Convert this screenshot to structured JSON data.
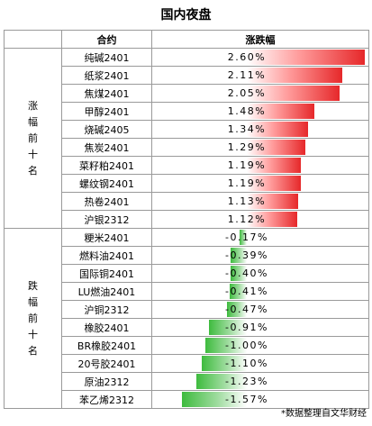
{
  "title": "国内夜盘",
  "footnote": "*数据整理自文华财经",
  "headers": {
    "contract": "合约",
    "change": "涨跌幅"
  },
  "groups": {
    "top": "涨幅前十名",
    "bottom": "跌幅前十名"
  },
  "colors": {
    "positive": "#e6282a",
    "negative": "#3ebb3e",
    "border": "#9a9a9a"
  },
  "chart_data": {
    "type": "bar",
    "title": "国内夜盘",
    "value_label": "涨跌幅",
    "unit": "%",
    "xlim": [
      -2.0,
      2.6
    ],
    "groups": [
      {
        "name": "涨幅前十名",
        "categories": [
          "纯碱2401",
          "纸浆2401",
          "焦煤2401",
          "甲醇2401",
          "烧碱2405",
          "焦炭2401",
          "菜籽粕2401",
          "螺纹钢2401",
          "热卷2401",
          "沪银2312"
        ],
        "values": [
          2.6,
          2.11,
          2.05,
          1.48,
          1.34,
          1.29,
          1.19,
          1.19,
          1.13,
          1.12
        ],
        "labels": [
          "2.60%",
          "2.11%",
          "2.05%",
          "1.48%",
          "1.34%",
          "1.29%",
          "1.19%",
          "1.19%",
          "1.13%",
          "1.12%"
        ]
      },
      {
        "name": "跌幅前十名",
        "categories": [
          "粳米2401",
          "燃料油2401",
          "国际铜2401",
          "LU燃油2401",
          "沪铜2312",
          "橡胶2401",
          "BR橡胶2401",
          "20号胶2401",
          "原油2312",
          "苯乙烯2312"
        ],
        "values": [
          -0.17,
          -0.39,
          -0.4,
          -0.41,
          -0.47,
          -0.91,
          -1.0,
          -1.1,
          -1.23,
          -1.57
        ],
        "labels": [
          "-0.17%",
          "-0.39%",
          "-0.40%",
          "-0.41%",
          "-0.47%",
          "-0.91%",
          "-1.00%",
          "-1.10%",
          "-1.23%",
          "-1.57%"
        ]
      }
    ]
  }
}
